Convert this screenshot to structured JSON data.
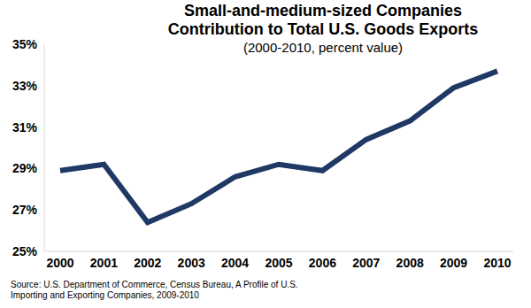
{
  "chart_data": {
    "type": "line",
    "title": "Small-and-medium-sized Companies\nContribution to Total U.S. Goods Exports",
    "subtitle": "(2000-2010, percent value)",
    "source": "Source: U.S. Department of Commerce, Census Bureau, A Profile of U.S.\nImporting and Exporting Companies, 2009-2010",
    "categories": [
      "2000",
      "2001",
      "2002",
      "2003",
      "2004",
      "2005",
      "2006",
      "2007",
      "2008",
      "2009",
      "2010"
    ],
    "values": [
      28.9,
      29.2,
      26.4,
      27.3,
      28.6,
      29.2,
      28.9,
      30.4,
      31.3,
      32.9,
      33.7
    ],
    "color": "#1f3864",
    "ylim": [
      25,
      35
    ],
    "yticks": [
      {
        "value": 25,
        "label": "25%"
      },
      {
        "value": 27,
        "label": "27%"
      },
      {
        "value": 29,
        "label": "29%"
      },
      {
        "value": 31,
        "label": "31%"
      },
      {
        "value": 33,
        "label": "33%"
      },
      {
        "value": 35,
        "label": "35%"
      }
    ],
    "grid": false
  }
}
